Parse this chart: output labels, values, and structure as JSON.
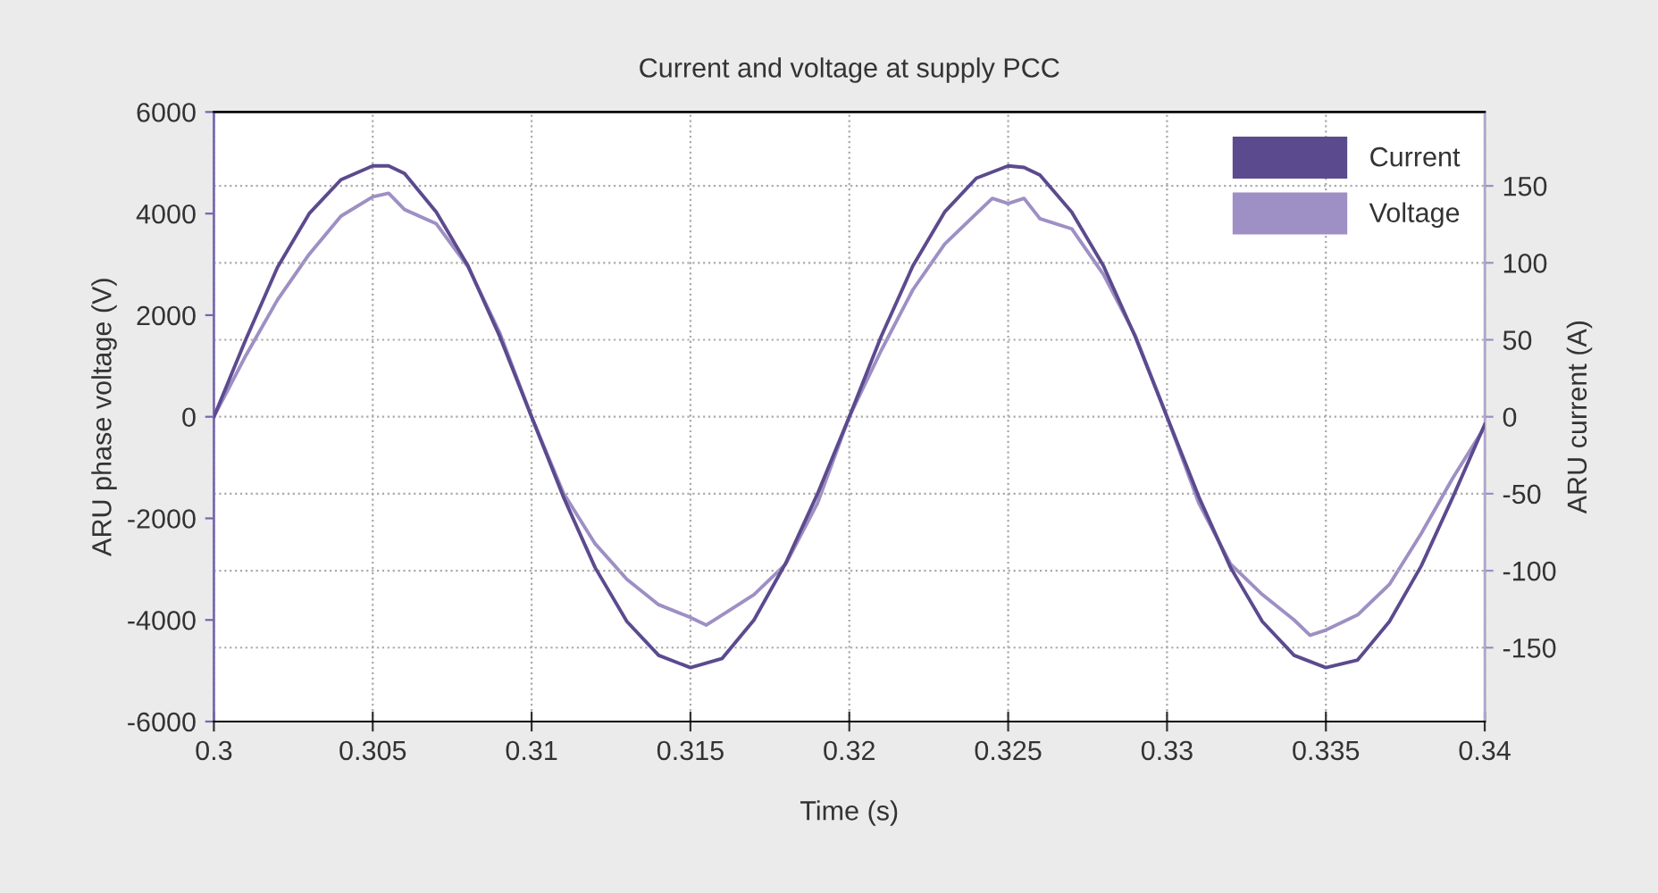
{
  "chart_data": {
    "type": "line",
    "title": "Current and voltage at supply PCC",
    "xlabel": "Time (s)",
    "ylabel": "ARU phase voltage (V)",
    "y2label": "ARU current (A)",
    "series": [
      {
        "name": "Current",
        "color": "#5c4a8e",
        "axis": "y2",
        "x": [
          0.3,
          0.301,
          0.302,
          0.303,
          0.304,
          0.305,
          0.3055,
          0.306,
          0.307,
          0.308,
          0.309,
          0.31,
          0.311,
          0.312,
          0.313,
          0.314,
          0.315,
          0.316,
          0.317,
          0.318,
          0.319,
          0.32,
          0.321,
          0.322,
          0.323,
          0.324,
          0.325,
          0.3255,
          0.326,
          0.327,
          0.328,
          0.329,
          0.33,
          0.331,
          0.332,
          0.333,
          0.334,
          0.335,
          0.336,
          0.337,
          0.338,
          0.339,
          0.34
        ],
        "values": [
          0,
          50,
          97,
          132,
          154,
          163,
          163,
          158,
          133,
          98,
          52,
          0,
          -52,
          -98,
          -133,
          -155,
          -163,
          -157,
          -132,
          -95,
          -50,
          0,
          52,
          98,
          133,
          155,
          163,
          162,
          157,
          133,
          98,
          52,
          0,
          -52,
          -98,
          -133,
          -155,
          -163,
          -158,
          -133,
          -97,
          -52,
          -5
        ]
      },
      {
        "name": "Voltage",
        "color": "#9e8fc4",
        "x": [
          0.3,
          0.301,
          0.302,
          0.303,
          0.304,
          0.305,
          0.3055,
          0.306,
          0.307,
          0.308,
          0.309,
          0.31,
          0.311,
          0.312,
          0.313,
          0.314,
          0.315,
          0.3155,
          0.316,
          0.317,
          0.318,
          0.319,
          0.32,
          0.321,
          0.322,
          0.323,
          0.324,
          0.3245,
          0.325,
          0.3255,
          0.326,
          0.327,
          0.328,
          0.329,
          0.33,
          0.331,
          0.332,
          0.333,
          0.334,
          0.3345,
          0.335,
          0.336,
          0.337,
          0.338,
          0.339,
          0.34
        ],
        "values": [
          0,
          1200,
          2300,
          3200,
          3950,
          4330,
          4400,
          4080,
          3800,
          2950,
          1650,
          0,
          -1500,
          -2500,
          -3200,
          -3700,
          -3950,
          -4100,
          -3900,
          -3500,
          -2900,
          -1700,
          0,
          1300,
          2500,
          3400,
          4000,
          4300,
          4200,
          4300,
          3900,
          3700,
          2800,
          1600,
          0,
          -1700,
          -2900,
          -3500,
          -4000,
          -4300,
          -4200,
          -3900,
          -3300,
          -2300,
          -1200,
          -200
        ]
      }
    ],
    "xlim": [
      0.3,
      0.34
    ],
    "xticks": [
      0.3,
      0.305,
      0.31,
      0.315,
      0.32,
      0.325,
      0.33,
      0.335,
      0.34
    ],
    "ylim": [
      -6000,
      6000
    ],
    "yticks": [
      -6000,
      -4000,
      -2000,
      0,
      2000,
      4000,
      6000
    ],
    "y2lim": [
      -198,
      198
    ],
    "y2ticks": [
      -150,
      -100,
      -50,
      0,
      50,
      100,
      150
    ],
    "grid": true,
    "legend": "top right",
    "marker": "none",
    "line_style": "solid"
  }
}
